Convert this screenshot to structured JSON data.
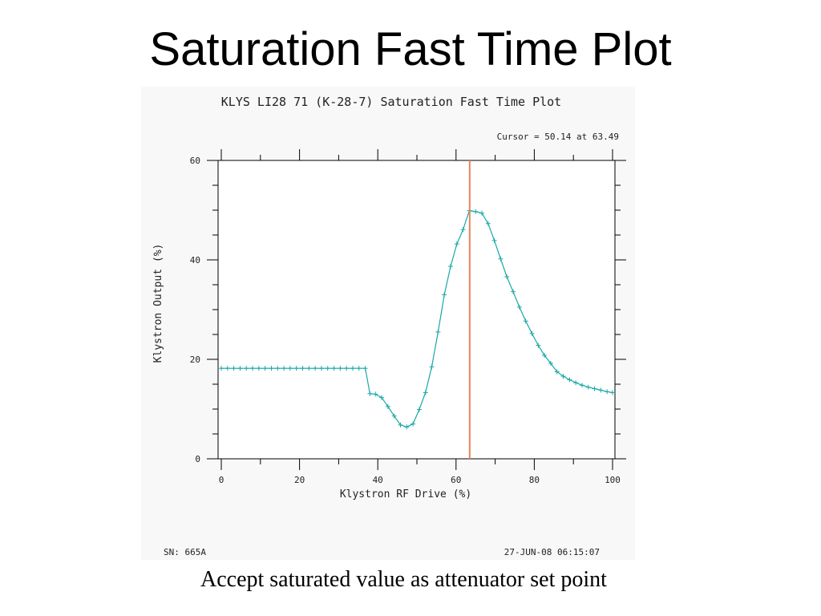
{
  "slide": {
    "title": "Saturation Fast Time Plot",
    "caption": "Accept saturated value as attenuator set point"
  },
  "chart_data": {
    "type": "line",
    "title": "KLYS LI28 71 (K-28-7)  Saturation Fast Time Plot",
    "cursor_text": "Cursor = 50.14 at  63.49",
    "xlabel": "Klystron RF Drive (%)",
    "ylabel": "Klystron Output (%)",
    "xlim": [
      0,
      100
    ],
    "ylim": [
      0,
      60
    ],
    "xticks": [
      "0",
      "20",
      "40",
      "60",
      "80",
      "100"
    ],
    "yticks": [
      "0",
      "20",
      "40",
      "60"
    ],
    "footer_left": "SN: 665A",
    "footer_right": "27-JUN-08 06:15:07",
    "cursor": {
      "x": 63.49,
      "y": 50.14,
      "color": "#e8845c"
    },
    "series": [
      {
        "color": "#1aa7a7",
        "x": [
          0,
          1.6,
          3.2,
          4.8,
          6.4,
          8,
          9.6,
          11.2,
          12.8,
          14.4,
          16,
          17.6,
          19.2,
          20.8,
          22.4,
          24,
          25.6,
          27.2,
          28.8,
          30.4,
          32,
          33.6,
          35.2,
          36.8,
          38,
          39.4,
          41,
          42.6,
          44.2,
          45.8,
          47.4,
          49,
          50.6,
          52.2,
          53.8,
          55.4,
          57,
          58.6,
          60.2,
          61.8,
          63.4,
          65,
          66.6,
          68.2,
          69.8,
          71.4,
          73,
          74.6,
          76.2,
          77.8,
          79.4,
          81,
          82.6,
          84.2,
          85.8,
          87.4,
          89,
          90.6,
          92.2,
          93.8,
          95.4,
          97,
          98.6,
          100
        ],
        "y": [
          18.2,
          18.2,
          18.2,
          18.2,
          18.2,
          18.2,
          18.2,
          18.2,
          18.2,
          18.2,
          18.2,
          18.2,
          18.2,
          18.2,
          18.2,
          18.2,
          18.2,
          18.2,
          18.2,
          18.2,
          18.2,
          18.2,
          18.2,
          18.2,
          13.1,
          13.0,
          12.3,
          10.5,
          8.6,
          6.8,
          6.4,
          7.0,
          9.9,
          13.3,
          18.5,
          25.5,
          33.0,
          38.7,
          43.2,
          46.1,
          49.9,
          49.7,
          49.4,
          47.3,
          43.9,
          40.2,
          36.6,
          33.6,
          30.5,
          27.7,
          25.2,
          22.8,
          20.8,
          19.2,
          17.5,
          16.6,
          15.9,
          15.3,
          14.8,
          14.4,
          14.1,
          13.8,
          13.5,
          13.3
        ]
      }
    ]
  }
}
